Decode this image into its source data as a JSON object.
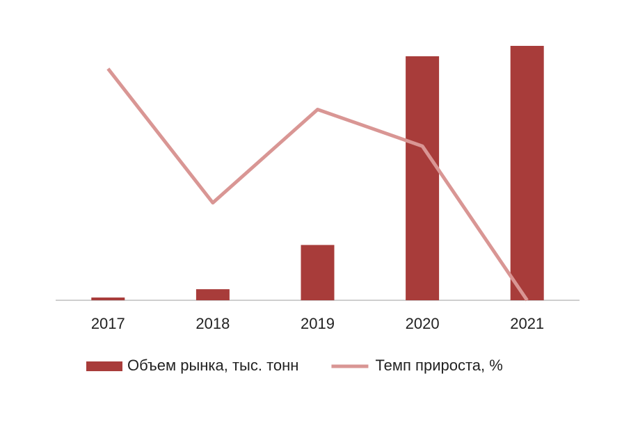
{
  "chart_data": {
    "type": "bar-line",
    "categories": [
      "2017",
      "2018",
      "2019",
      "2020",
      "2021"
    ],
    "series": [
      {
        "name": "Объем рынка, тыс. тонн",
        "type": "bar",
        "color": "#a83c3a",
        "values": [
          4,
          16,
          80,
          353,
          368
        ]
      },
      {
        "name": "Темп прироста, %",
        "type": "line",
        "color": "#d99694",
        "values": [
          335,
          141,
          276,
          223,
          0
        ]
      }
    ],
    "ylim": [
      0,
      370
    ],
    "grid": false,
    "legend": "bottom"
  }
}
